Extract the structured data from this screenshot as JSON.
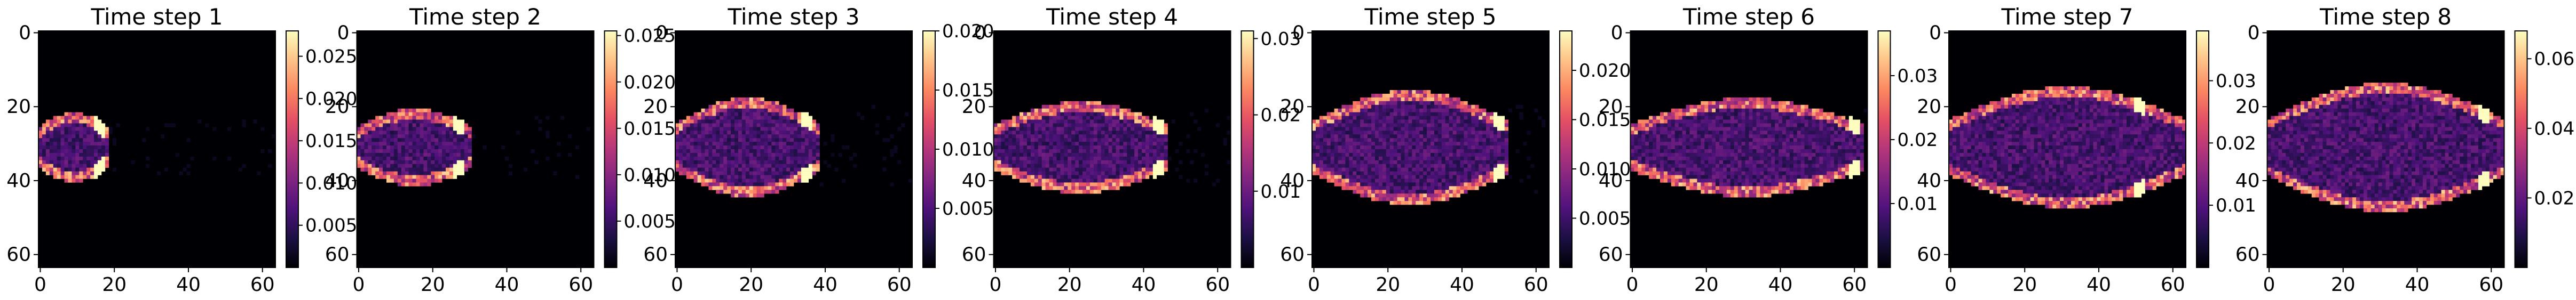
{
  "figure": {
    "colormap": "magma",
    "colors": {
      "background": "#ffffff",
      "axis": "#000000",
      "colormap_stops": [
        "#000004",
        "#1c1044",
        "#4f127b",
        "#812581",
        "#b5367a",
        "#e55064",
        "#fb8761",
        "#fec287",
        "#fcfdbf"
      ]
    }
  },
  "chart_data": [
    {
      "type": "heatmap",
      "title": "Time step 1",
      "xlim": [
        0,
        63
      ],
      "ylim": [
        63,
        0
      ],
      "x_ticks": [
        "0",
        "20",
        "40",
        "60"
      ],
      "y_ticks": [
        "0",
        "20",
        "40",
        "60"
      ],
      "colorbar": {
        "range": [
          0.0,
          0.028
        ],
        "ticks": [
          "0.005",
          "0.010",
          "0.015",
          "0.020",
          "0.025"
        ],
        "tick_values": [
          0.005,
          0.01,
          0.015,
          0.02,
          0.025
        ]
      },
      "structure": {
        "centre_row": 31,
        "half_width": 8,
        "length": 18,
        "peak_col": 16
      }
    },
    {
      "type": "heatmap",
      "title": "Time step 2",
      "xlim": [
        0,
        63
      ],
      "ylim": [
        63,
        0
      ],
      "x_ticks": [
        "0",
        "20",
        "40",
        "60"
      ],
      "y_ticks": [
        "0",
        "20",
        "40",
        "60"
      ],
      "colorbar": {
        "range": [
          0.0,
          0.0255
        ],
        "ticks": [
          "0.005",
          "0.010",
          "0.015",
          "0.020",
          "0.025"
        ],
        "tick_values": [
          0.005,
          0.01,
          0.015,
          0.02,
          0.025
        ]
      },
      "structure": {
        "centre_row": 31,
        "half_width": 9,
        "length": 30,
        "peak_col": 27
      }
    },
    {
      "type": "heatmap",
      "title": "Time step 3",
      "xlim": [
        0,
        63
      ],
      "ylim": [
        63,
        0
      ],
      "x_ticks": [
        "0",
        "20",
        "40",
        "60"
      ],
      "y_ticks": [
        "0",
        "20",
        "40",
        "60"
      ],
      "colorbar": {
        "range": [
          0.0,
          0.02
        ],
        "ticks": [
          "0.005",
          "0.010",
          "0.015",
          "0.020"
        ],
        "tick_values": [
          0.005,
          0.01,
          0.015,
          0.02
        ]
      },
      "structure": {
        "centre_row": 31,
        "half_width": 12,
        "length": 38,
        "peak_col": 35
      }
    },
    {
      "type": "heatmap",
      "title": "Time step 4",
      "xlim": [
        0,
        63
      ],
      "ylim": [
        63,
        0
      ],
      "x_ticks": [
        "0",
        "20",
        "40",
        "60"
      ],
      "y_ticks": [
        "0",
        "20",
        "40",
        "60"
      ],
      "colorbar": {
        "range": [
          0.0,
          0.031
        ],
        "ticks": [
          "0.01",
          "0.02",
          "0.03"
        ],
        "tick_values": [
          0.01,
          0.02,
          0.03
        ]
      },
      "structure": {
        "centre_row": 31,
        "half_width": 11,
        "length": 46,
        "peak_col": 44
      }
    },
    {
      "type": "heatmap",
      "title": "Time step 5",
      "xlim": [
        0,
        63
      ],
      "ylim": [
        63,
        0
      ],
      "x_ticks": [
        "0",
        "20",
        "40",
        "60"
      ],
      "y_ticks": [
        "0",
        "20",
        "40",
        "60"
      ],
      "colorbar": {
        "range": [
          0.0,
          0.024
        ],
        "ticks": [
          "0.005",
          "0.010",
          "0.015",
          "0.020"
        ],
        "tick_values": [
          0.005,
          0.01,
          0.015,
          0.02
        ]
      },
      "structure": {
        "centre_row": 31,
        "half_width": 14,
        "length": 52,
        "peak_col": 50
      }
    },
    {
      "type": "heatmap",
      "title": "Time step 6",
      "xlim": [
        0,
        63
      ],
      "ylim": [
        63,
        0
      ],
      "x_ticks": [
        "0",
        "20",
        "40",
        "60"
      ],
      "y_ticks": [
        "0",
        "20",
        "40",
        "60"
      ],
      "colorbar": {
        "range": [
          0.0,
          0.037
        ],
        "ticks": [
          "0.01",
          "0.02",
          "0.03"
        ],
        "tick_values": [
          0.01,
          0.02,
          0.03
        ]
      },
      "structure": {
        "centre_row": 31,
        "half_width": 12,
        "length": 62,
        "peak_col": 60
      }
    },
    {
      "type": "heatmap",
      "title": "Time step 7",
      "xlim": [
        0,
        63
      ],
      "ylim": [
        63,
        0
      ],
      "x_ticks": [
        "0",
        "20",
        "40",
        "60"
      ],
      "y_ticks": [
        "0",
        "20",
        "40",
        "60"
      ],
      "colorbar": {
        "range": [
          0.0,
          0.038
        ],
        "ticks": [
          "0.01",
          "0.02",
          "0.03"
        ],
        "tick_values": [
          0.01,
          0.02,
          0.03
        ]
      },
      "structure": {
        "centre_row": 31,
        "half_width": 15,
        "length": 63,
        "peak_col": 51
      }
    },
    {
      "type": "heatmap",
      "title": "Time step 8",
      "xlim": [
        0,
        63
      ],
      "ylim": [
        63,
        0
      ],
      "x_ticks": [
        "0",
        "20",
        "40",
        "60"
      ],
      "y_ticks": [
        "0",
        "20",
        "40",
        "60"
      ],
      "colorbar": {
        "range": [
          0.0,
          0.068
        ],
        "ticks": [
          "0.02",
          "0.04",
          "0.06"
        ],
        "tick_values": [
          0.02,
          0.04,
          0.06
        ]
      },
      "structure": {
        "centre_row": 31,
        "half_width": 16,
        "length": 63,
        "peak_col": 58
      }
    }
  ]
}
